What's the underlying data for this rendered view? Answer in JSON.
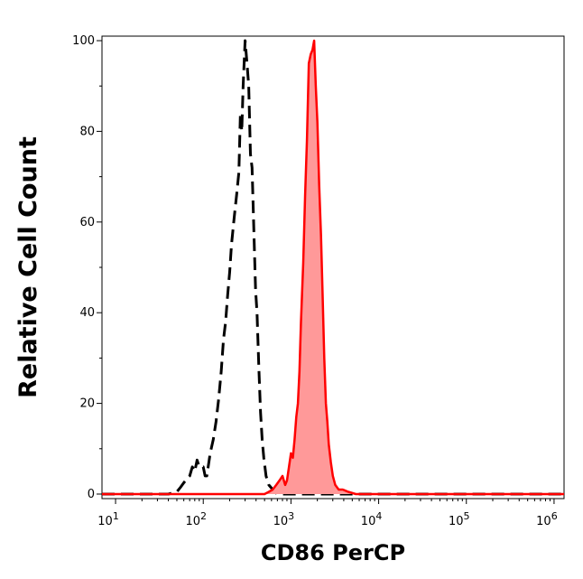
{
  "chart_data": {
    "type": "area",
    "xlabel": "CD86 PerCP",
    "ylabel": "Relative Cell Count",
    "x_scale": "log10",
    "xlim": [
      7,
      1300000
    ],
    "ylim": [
      -1,
      101
    ],
    "y_ticks": [
      0,
      20,
      40,
      60,
      80,
      100
    ],
    "x_tick_labels": [
      {
        "base": "10",
        "exp": "1",
        "value": 10
      },
      {
        "base": "10",
        "exp": "2",
        "value": 100
      },
      {
        "base": "10",
        "exp": "3",
        "value": 1000
      },
      {
        "base": "10",
        "exp": "4",
        "value": 10000
      },
      {
        "base": "10",
        "exp": "5",
        "value": 100000
      },
      {
        "base": "10",
        "exp": "6",
        "value": 1000000
      }
    ],
    "grid": false,
    "colors": {
      "stained_line": "#ff0000",
      "stained_fill": "#ff9999",
      "control_line": "#000000"
    },
    "series": [
      {
        "style": "dashed-black",
        "x": [
          7,
          40,
          50,
          55,
          60,
          70,
          75,
          80,
          85,
          90,
          100,
          105,
          110,
          120,
          130,
          140,
          150,
          160,
          170,
          180,
          190,
          200,
          210,
          225,
          240,
          255,
          265,
          275,
          285,
          300,
          315,
          330,
          345,
          360,
          380,
          395,
          410,
          430,
          450,
          470,
          490,
          520,
          560,
          620,
          700,
          1000,
          10000,
          1300000
        ],
        "y": [
          0,
          0,
          0.5,
          1.5,
          2.5,
          4,
          6,
          5,
          7.5,
          6,
          6,
          4,
          4,
          9,
          12,
          16,
          21,
          27,
          34,
          38,
          44,
          49,
          55,
          61,
          66,
          71,
          84,
          80,
          90,
          100,
          95,
          90,
          75,
          72,
          56,
          45,
          40,
          28,
          18,
          12,
          8,
          4,
          2,
          1,
          0,
          0,
          0,
          0
        ]
      },
      {
        "style": "filled-red",
        "x": [
          7,
          500,
          560,
          620,
          680,
          740,
          800,
          860,
          900,
          950,
          1000,
          1050,
          1100,
          1150,
          1200,
          1250,
          1300,
          1380,
          1450,
          1520,
          1600,
          1680,
          1760,
          1840,
          1920,
          2000,
          2100,
          2200,
          2300,
          2400,
          2500,
          2600,
          2700,
          2850,
          3000,
          3200,
          3500,
          3900,
          4500,
          5500,
          1300000
        ],
        "y": [
          0,
          0,
          0.5,
          1,
          2,
          3,
          4,
          2,
          3,
          6,
          9,
          8,
          12,
          17,
          20,
          27,
          38,
          51,
          66,
          78,
          95,
          97,
          98,
          100,
          90,
          82,
          68,
          57,
          43,
          30,
          20,
          16,
          11,
          7,
          4,
          2,
          1,
          1,
          0.5,
          0,
          0
        ]
      }
    ]
  }
}
